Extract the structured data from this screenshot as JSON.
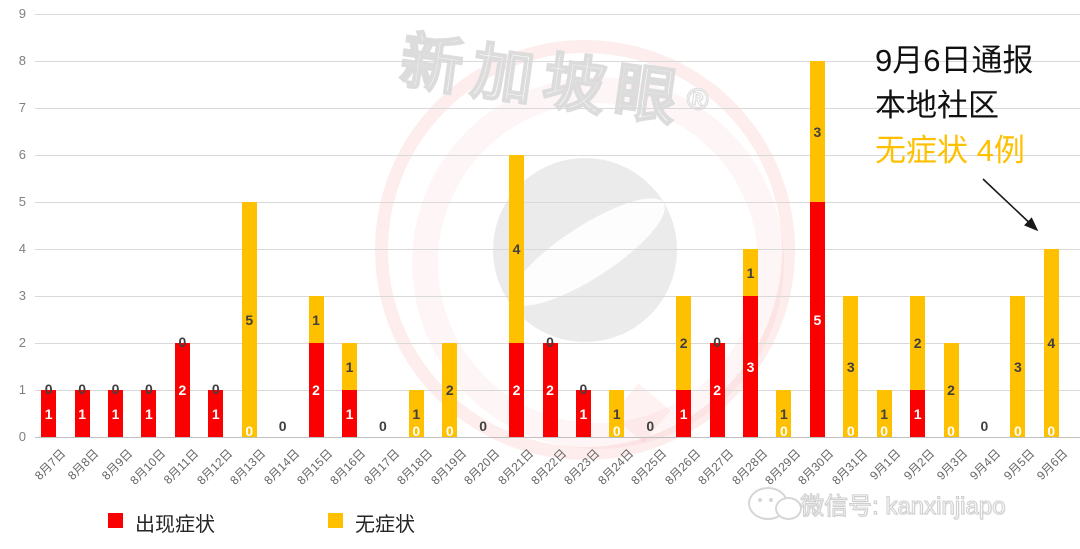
{
  "chart_data": {
    "type": "bar",
    "stacked": true,
    "title": "",
    "categories": [
      "8月7日",
      "8月8日",
      "8月9日",
      "8月10日",
      "8月11日",
      "8月12日",
      "8月13日",
      "8月14日",
      "8月15日",
      "8月16日",
      "8月17日",
      "8月18日",
      "8月19日",
      "8月20日",
      "8月21日",
      "8月22日",
      "8月23日",
      "8月24日",
      "8月25日",
      "8月26日",
      "8月27日",
      "8月28日",
      "8月29日",
      "8月30日",
      "8月31日",
      "9月1日",
      "9月2日",
      "9月3日",
      "9月4日",
      "9月5日",
      "9月6日"
    ],
    "series": [
      {
        "name": "出现症状",
        "color": "#FB0000",
        "label_color": "#FFFFFF",
        "values": [
          1,
          1,
          1,
          1,
          2,
          1,
          0,
          0,
          2,
          1,
          0,
          0,
          0,
          0,
          2,
          2,
          1,
          0,
          0,
          1,
          2,
          3,
          0,
          5,
          0,
          0,
          1,
          0,
          0,
          0,
          0
        ]
      },
      {
        "name": "无症状",
        "color": "#FFC000",
        "label_color": "#404040",
        "values": [
          0,
          0,
          0,
          0,
          0,
          0,
          5,
          0,
          1,
          1,
          0,
          1,
          2,
          0,
          4,
          0,
          0,
          1,
          0,
          2,
          0,
          1,
          1,
          3,
          3,
          1,
          2,
          2,
          0,
          3,
          4
        ]
      }
    ],
    "ylim": [
      0,
      9
    ],
    "yticks": [
      0,
      1,
      2,
      3,
      4,
      5,
      6,
      7,
      8,
      9
    ],
    "grid": true,
    "data_labels": true,
    "legend_position": "bottom-left"
  },
  "annotation": {
    "line1": "9月6日通报",
    "line2": "本地社区",
    "line3": "无症状 4例",
    "line3_color": "#FFC000",
    "arrow_color": "#1a1a1a"
  },
  "legend": {
    "items": [
      {
        "label": "出现症状",
        "color": "#FB0000"
      },
      {
        "label": "无症状",
        "color": "#FFC000"
      }
    ]
  },
  "watermark": {
    "brand": "新加坡眼",
    "registered": "®",
    "wechat": "微信号: kanxinjiapo"
  },
  "colors": {
    "grid": "#D9D9D9",
    "axis_line": "#BFBFBF",
    "y_label": "#808080",
    "x_label": "#666666"
  }
}
